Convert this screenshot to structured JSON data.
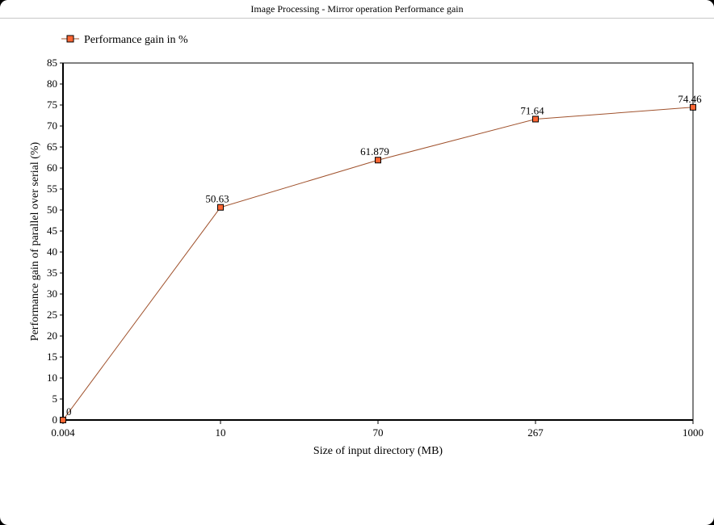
{
  "window": {
    "title": "Image Processing - Mirror operation Performance gain"
  },
  "chart_data": {
    "type": "line",
    "title": "Image Processing - Mirror operation Performance gain",
    "xlabel": "Size of input directory (MB)",
    "ylabel": "Performance gain of parallel over serial (%)",
    "categories": [
      "0.004",
      "10",
      "70",
      "267",
      "1000"
    ],
    "series": [
      {
        "name": "Performance gain in %",
        "values": [
          0,
          50.63,
          61.879,
          71.64,
          74.46
        ],
        "labels": [
          "0",
          "50.63",
          "61.879",
          "71.64",
          "74.46"
        ],
        "color": "#a0522d",
        "marker_color": "#ff6633"
      }
    ],
    "ylim": [
      0,
      85
    ],
    "yticks": [
      "0",
      "5",
      "10",
      "15",
      "20",
      "25",
      "30",
      "35",
      "40",
      "45",
      "50",
      "55",
      "60",
      "65",
      "70",
      "75",
      "80",
      "85"
    ],
    "grid": false,
    "legend_position": "top-left"
  }
}
